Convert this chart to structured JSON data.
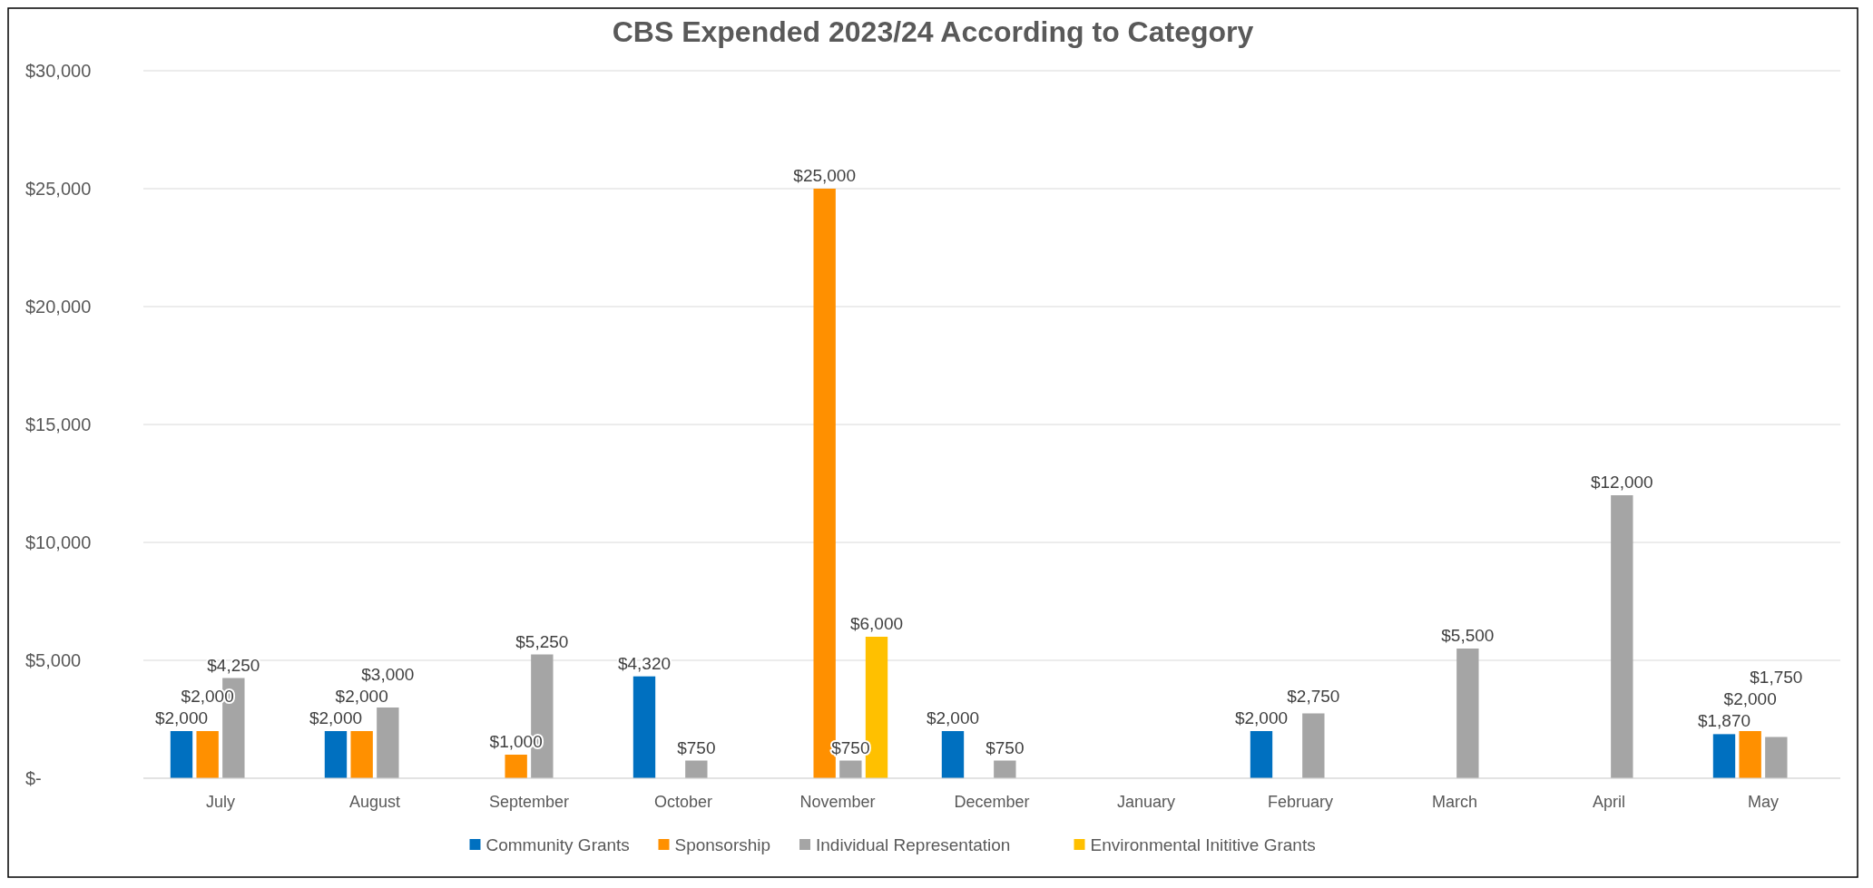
{
  "chart_data": {
    "type": "bar",
    "title": "CBS Expended 2023/24  According to Category",
    "categories": [
      "July",
      "August",
      "September",
      "October",
      "November",
      "December",
      "January",
      "February",
      "March",
      "April",
      "May"
    ],
    "series": [
      {
        "name": "Community Grants",
        "color": "#0070c0",
        "values": [
          2000,
          2000,
          null,
          4320,
          null,
          2000,
          null,
          2000,
          null,
          null,
          1870
        ],
        "value_labels": [
          "$2,000",
          "$2,000",
          null,
          "$4,320",
          null,
          "$2,000",
          null,
          "$2,000",
          null,
          null,
          "$1,870"
        ]
      },
      {
        "name": "Sponsorship",
        "color": "#ff9000",
        "values": [
          2000,
          2000,
          1000,
          null,
          25000,
          null,
          null,
          null,
          null,
          null,
          2000
        ],
        "value_labels": [
          "$2,000",
          "$2,000",
          "$1,000",
          null,
          "$25,000",
          null,
          null,
          null,
          null,
          null,
          "$2,000"
        ]
      },
      {
        "name": "Individual Representation",
        "color": "#a5a5a5",
        "values": [
          4250,
          3000,
          5250,
          750,
          750,
          750,
          null,
          2750,
          5500,
          12000,
          1750
        ],
        "value_labels": [
          "$4,250",
          "$3,000",
          "$5,250",
          "$750",
          "$750",
          "$750",
          null,
          "$2,750",
          "$5,500",
          "$12,000",
          "$1,750"
        ]
      },
      {
        "name": "Environmental Inititive Grants",
        "color": "#ffc000",
        "values": [
          null,
          null,
          null,
          null,
          6000,
          null,
          null,
          null,
          null,
          null,
          null
        ],
        "value_labels": [
          null,
          null,
          null,
          null,
          "$6,000",
          null,
          null,
          null,
          null,
          null,
          null
        ]
      }
    ],
    "ylim": [
      0,
      30000
    ],
    "yticks": [
      {
        "value": 0,
        "label": "$-"
      },
      {
        "value": 5000,
        "label": "$5,000"
      },
      {
        "value": 10000,
        "label": "$10,000"
      },
      {
        "value": 15000,
        "label": "$15,000"
      },
      {
        "value": 20000,
        "label": "$20,000"
      },
      {
        "value": 25000,
        "label": "$25,000"
      },
      {
        "value": 30000,
        "label": "$30,000"
      }
    ],
    "grid": "y",
    "legend": "bottom"
  }
}
